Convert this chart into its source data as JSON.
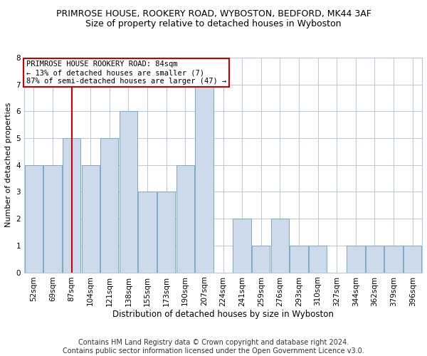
{
  "title": "PRIMROSE HOUSE, ROOKERY ROAD, WYBOSTON, BEDFORD, MK44 3AF",
  "subtitle": "Size of property relative to detached houses in Wyboston",
  "xlabel": "Distribution of detached houses by size in Wyboston",
  "ylabel": "Number of detached properties",
  "categories": [
    "52sqm",
    "69sqm",
    "87sqm",
    "104sqm",
    "121sqm",
    "138sqm",
    "155sqm",
    "173sqm",
    "190sqm",
    "207sqm",
    "224sqm",
    "241sqm",
    "259sqm",
    "276sqm",
    "293sqm",
    "310sqm",
    "327sqm",
    "344sqm",
    "362sqm",
    "379sqm",
    "396sqm"
  ],
  "values": [
    4,
    4,
    5,
    4,
    5,
    6,
    3,
    3,
    4,
    7,
    0,
    2,
    1,
    2,
    1,
    1,
    0,
    1,
    1,
    1,
    1
  ],
  "bar_color": "#ccdaeb",
  "bar_edge_color": "#7aaac8",
  "highlight_index": 2,
  "highlight_line_color": "#cc0000",
  "annotation_text": "PRIMROSE HOUSE ROOKERY ROAD: 84sqm\n← 13% of detached houses are smaller (7)\n87% of semi-detached houses are larger (47) →",
  "annotation_box_color": "#ffffff",
  "annotation_box_edge_color": "#cc0000",
  "ylim": [
    0,
    8
  ],
  "yticks": [
    0,
    1,
    2,
    3,
    4,
    5,
    6,
    7,
    8
  ],
  "footer_text": "Contains HM Land Registry data © Crown copyright and database right 2024.\nContains public sector information licensed under the Open Government Licence v3.0.",
  "background_color": "#ffffff",
  "grid_color": "#b8c8dc",
  "title_fontsize": 9,
  "subtitle_fontsize": 9,
  "xlabel_fontsize": 8.5,
  "ylabel_fontsize": 8,
  "tick_fontsize": 7.5,
  "annotation_fontsize": 7.5,
  "footer_fontsize": 7
}
